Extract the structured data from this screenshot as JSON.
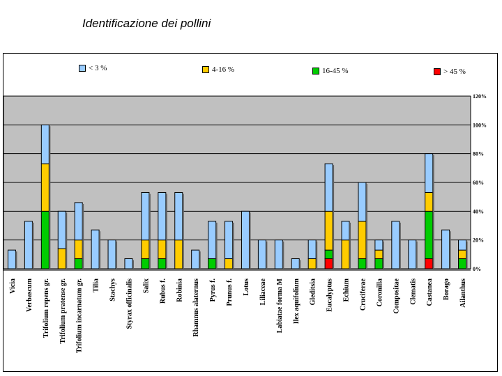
{
  "chart_data": {
    "type": "bar",
    "stacked": true,
    "title": "Identificazione dei pollini",
    "xlabel": "",
    "ylabel": "",
    "ylim": [
      0,
      120
    ],
    "yticks": [
      "0%",
      "20%",
      "40%",
      "60%",
      "80%",
      "100%",
      "120%"
    ],
    "grid": true,
    "legend_position": "top",
    "categories": [
      "Vicia",
      "Verbascum",
      "Trifolium repens gr.",
      "Trifolium pratense gr.",
      "Trifolium incarnatum gr.",
      "Tilia",
      "Stachys",
      "Styrax officinalis",
      "Salix",
      "Rubus f.",
      "Robinia",
      "Rhamnus alaternus",
      "Pyrus f.",
      "Prunus f.",
      "Lotus",
      "Liliaceae",
      "Labiatae forma M",
      "Ilex aquifolium",
      "Gleditsia",
      "Eucalyptus",
      "Echium",
      "Cruciferae",
      "Coronilla",
      "Compositae",
      "Clematis",
      "Castanea",
      "Borago",
      "Ailanthus"
    ],
    "series": [
      {
        "name": "> 45 %",
        "color": "#ff0000",
        "values": [
          0,
          0,
          0,
          0,
          0,
          0,
          0,
          0,
          0,
          0,
          0,
          0,
          0,
          0,
          0,
          0,
          0,
          0,
          0,
          7,
          0,
          0,
          0,
          0,
          0,
          7,
          0,
          0
        ]
      },
      {
        "name": "16-45 %",
        "color": "#00cc00",
        "values": [
          0,
          0,
          40,
          0,
          7,
          0,
          0,
          0,
          7,
          7,
          0,
          0,
          7,
          0,
          0,
          0,
          0,
          0,
          0,
          6,
          0,
          7,
          7,
          0,
          0,
          33,
          0,
          7
        ]
      },
      {
        "name": "4-16 %",
        "color": "#ffcc00",
        "values": [
          0,
          0,
          33,
          14,
          13,
          0,
          0,
          0,
          13,
          13,
          20,
          0,
          0,
          7,
          0,
          0,
          0,
          0,
          7,
          27,
          20,
          26,
          6,
          0,
          0,
          13,
          0,
          6
        ]
      },
      {
        "name": "< 3 %",
        "color": "#99ccff",
        "values": [
          13,
          33,
          27,
          26,
          26,
          27,
          20,
          7,
          33,
          33,
          33,
          13,
          26,
          26,
          40,
          20,
          20,
          7,
          13,
          33,
          13,
          27,
          7,
          33,
          20,
          27,
          27,
          7
        ]
      }
    ]
  }
}
